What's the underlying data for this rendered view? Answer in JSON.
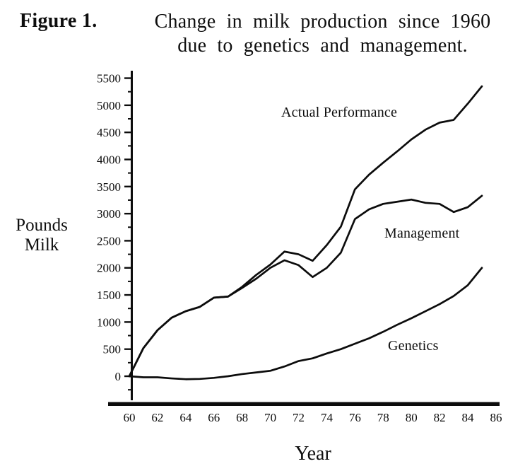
{
  "figure": {
    "label": "Figure 1.",
    "title_line1": "Change in milk production since 1960",
    "title_line2": "due to genetics and management."
  },
  "colors": {
    "ink": "#0c0c0c",
    "paper": "#ffffff"
  },
  "chart_data": {
    "type": "line",
    "title": "Change in milk production since 1960 due to genetics and management.",
    "xlabel": "Year",
    "ylabel": "Pounds Milk",
    "ylabel_lines": [
      "Pounds",
      "Milk"
    ],
    "x_ticks": [
      60,
      62,
      64,
      66,
      68,
      70,
      72,
      74,
      76,
      78,
      80,
      82,
      84,
      86
    ],
    "y_ticks": [
      0,
      500,
      1000,
      1500,
      2000,
      2500,
      3000,
      3500,
      4000,
      4500,
      5000,
      5500
    ],
    "y_minor_tick_step": 250,
    "xlim": [
      60,
      86
    ],
    "ylim": [
      -450,
      5620
    ],
    "grid": "off",
    "legend": "inline-annotations",
    "x": [
      60,
      61,
      62,
      63,
      64,
      65,
      66,
      67,
      68,
      69,
      70,
      71,
      72,
      73,
      74,
      75,
      76,
      77,
      78,
      79,
      80,
      81,
      82,
      83,
      84,
      85
    ],
    "series": [
      {
        "name": "Actual Performance",
        "values": [
          0,
          520,
          850,
          1080,
          1200,
          1280,
          1450,
          1470,
          1650,
          1870,
          2060,
          2300,
          2250,
          2130,
          2420,
          2760,
          3450,
          3720,
          3940,
          4150,
          4370,
          4550,
          4680,
          4730,
          5030,
          5350
        ]
      },
      {
        "name": "Management",
        "values": [
          0,
          520,
          850,
          1080,
          1200,
          1280,
          1450,
          1470,
          1630,
          1800,
          2000,
          2140,
          2050,
          1830,
          2000,
          2280,
          2900,
          3080,
          3180,
          3220,
          3260,
          3200,
          3180,
          3030,
          3120,
          3330
        ]
      },
      {
        "name": "Genetics",
        "values": [
          0,
          -20,
          -20,
          -40,
          -55,
          -50,
          -30,
          0,
          40,
          70,
          100,
          180,
          280,
          330,
          420,
          500,
          600,
          700,
          820,
          950,
          1070,
          1200,
          1330,
          1480,
          1680,
          2000
        ]
      }
    ]
  }
}
